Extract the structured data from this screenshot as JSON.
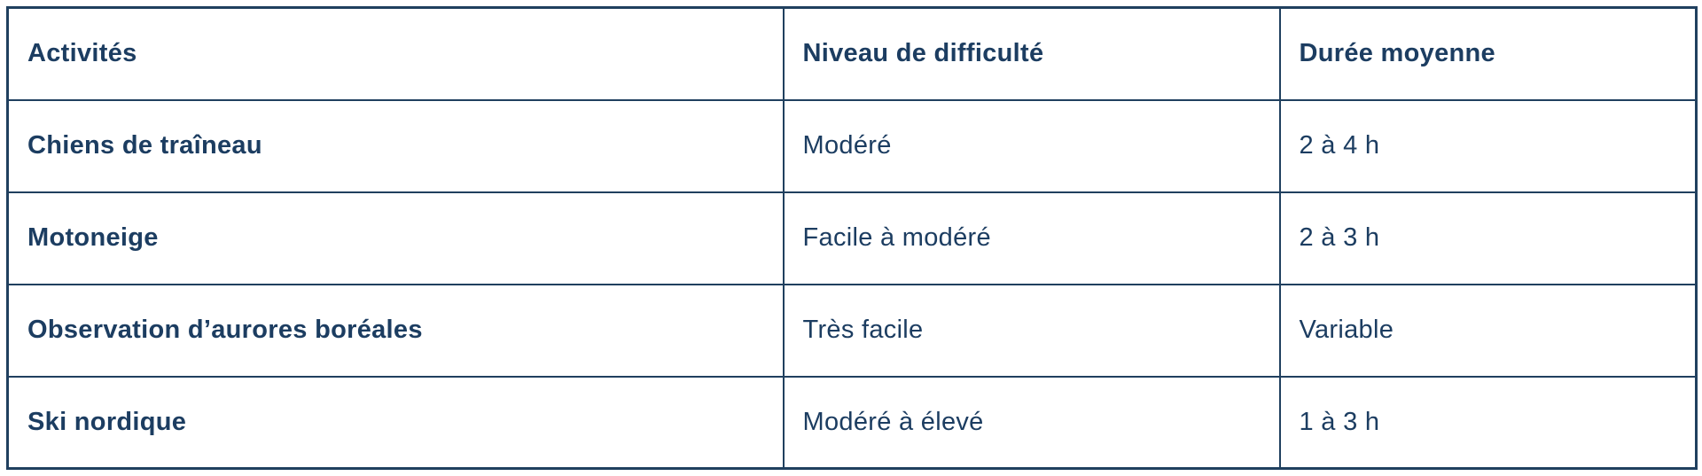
{
  "theme": {
    "text_color": "#1c3d61",
    "border_color": "#20405f",
    "background_color": "#ffffff"
  },
  "table": {
    "columns": [
      {
        "label": "Activités"
      },
      {
        "label": "Niveau de difficulté"
      },
      {
        "label": "Durée moyenne"
      }
    ],
    "rows": [
      {
        "activity": "Chiens de traîneau",
        "difficulty": "Modéré",
        "duration": "2 à 4 h"
      },
      {
        "activity": "Motoneige",
        "difficulty": "Facile à modéré",
        "duration": "2 à 3 h"
      },
      {
        "activity": "Observation d’aurores boréales",
        "difficulty": "Très facile",
        "duration": "Variable"
      },
      {
        "activity": "Ski nordique",
        "difficulty": "Modéré à élevé",
        "duration": "1 à 3 h"
      }
    ]
  },
  "chart_data": {
    "type": "table",
    "title": "",
    "columns": [
      "Activités",
      "Niveau de difficulté",
      "Durée moyenne"
    ],
    "rows": [
      [
        "Chiens de traîneau",
        "Modéré",
        "2 à 4 h"
      ],
      [
        "Motoneige",
        "Facile à modéré",
        "2 à 3 h"
      ],
      [
        "Observation d’aurores boréales",
        "Très facile",
        "Variable"
      ],
      [
        "Ski nordique",
        "Modéré à élevé",
        "1 à 3 h"
      ]
    ]
  }
}
